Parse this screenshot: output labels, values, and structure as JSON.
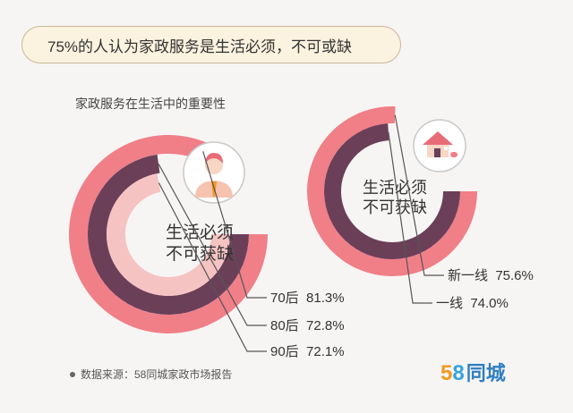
{
  "banner": {
    "text": "75%的人认为家政服务是生活必须，不可或缺"
  },
  "section_title": "家政服务在生活中的重要性",
  "chart_data": [
    {
      "type": "radial-bar",
      "center_label": [
        "生活必须",
        "不可获缺"
      ],
      "icon": "person-icon",
      "series": [
        {
          "name": "70后",
          "value": 81.3,
          "label": "70后  81.3%",
          "color": "#f07f88"
        },
        {
          "name": "80后",
          "value": 72.8,
          "label": "80后  72.8%",
          "color": "#6c3f59"
        },
        {
          "name": "90后",
          "value": 72.1,
          "label": "90后  72.1%",
          "color": "#f6c3c3"
        }
      ]
    },
    {
      "type": "radial-bar",
      "center_label": [
        "生活必须",
        "不可获缺"
      ],
      "icon": "house-icon",
      "series": [
        {
          "name": "新一线",
          "value": 75.6,
          "label": "新一线  75.6%",
          "color": "#f07f88"
        },
        {
          "name": "一线",
          "value": 74.0,
          "label": "一线  74.0%",
          "color": "#6c3f59"
        }
      ]
    }
  ],
  "footer": {
    "source": "数据来源：58同城家政市场报告"
  },
  "logo": {
    "five": "5",
    "eight": "8",
    "name": "同城"
  }
}
